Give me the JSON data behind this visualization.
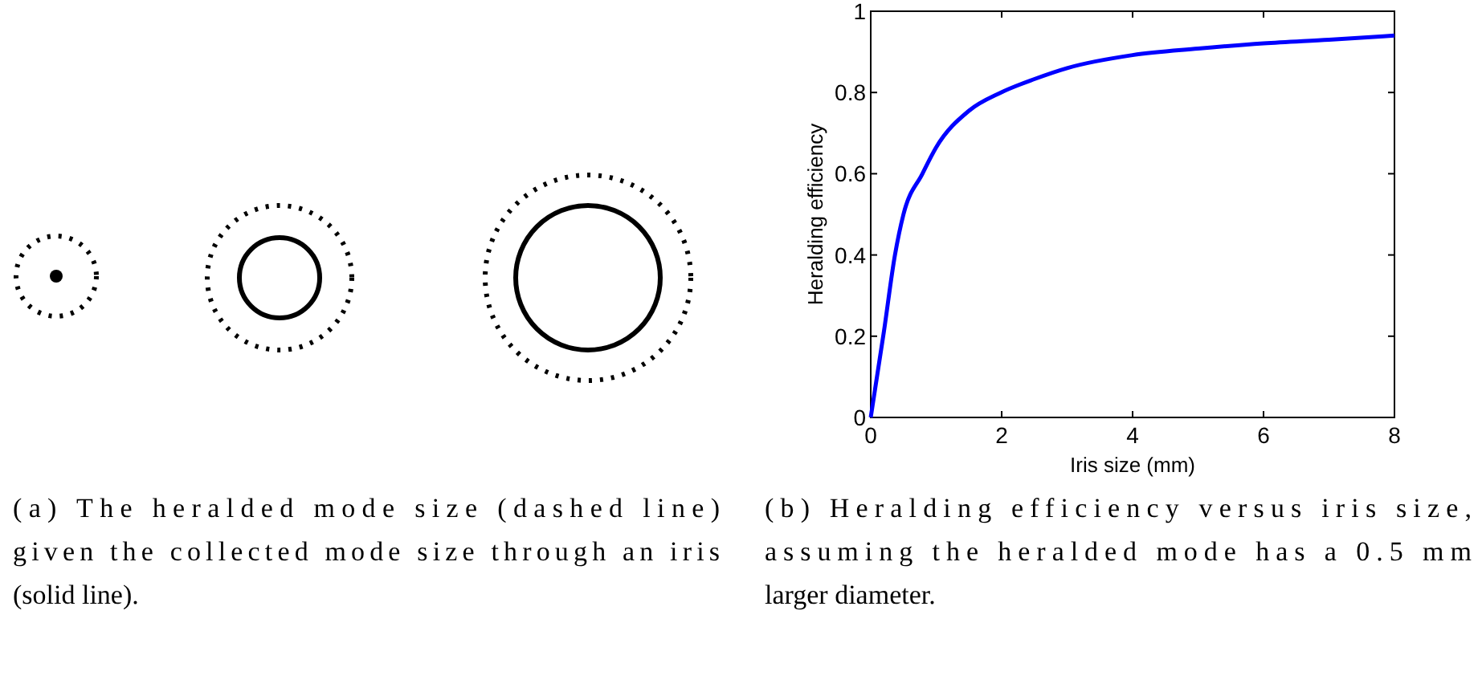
{
  "chart_data": {
    "type": "line",
    "xlabel": "Iris size (mm)",
    "ylabel": "Heralding efficiency",
    "x": [
      0,
      0.2,
      0.37,
      0.5,
      0.79,
      1,
      1.5,
      1.99,
      2.5,
      3,
      4,
      5,
      6,
      7,
      8
    ],
    "series": [
      {
        "color": "#0000ff",
        "values": [
          0,
          0.21,
          0.4,
          0.5,
          0.6,
          0.665,
          0.755,
          0.8,
          0.833,
          0.86,
          0.892,
          0.908,
          0.921,
          0.93,
          0.94
        ]
      }
    ],
    "xlim": [
      0,
      8
    ],
    "ylim": [
      0,
      1
    ],
    "xticks": [
      0,
      2,
      4,
      6,
      8
    ],
    "yticks": [
      0,
      0.2,
      0.4,
      0.6,
      0.8,
      1
    ],
    "grid": false,
    "marker": "none",
    "line_style": "solid",
    "annotations": [
      "(a) The heralded mode size (dashed line) given the collected mode size through an iris (solid line).",
      "(b) Heralding efficiency versus iris size, assuming the heralded mode has a 0.5 mm larger diameter."
    ]
  }
}
